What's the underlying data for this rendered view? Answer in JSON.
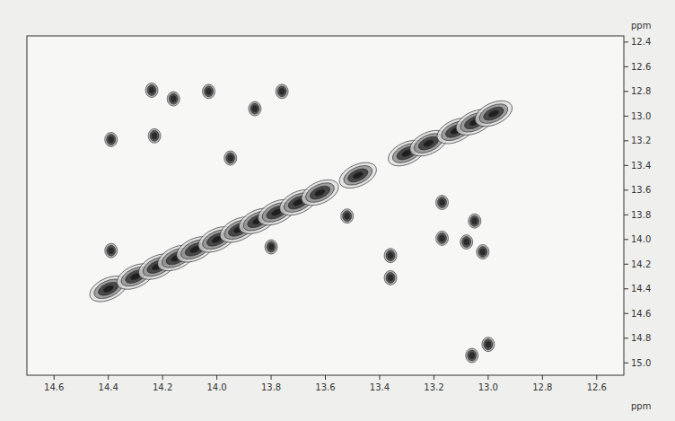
{
  "chart_data": {
    "type": "scatter",
    "x_label": "ppm",
    "y_label": "ppm",
    "xlim": [
      14.7,
      12.5
    ],
    "ylim": [
      12.35,
      15.1
    ],
    "xticks": [
      14.6,
      14.4,
      14.2,
      {
        "value": 14,
        "label": "14.0"
      },
      13.8,
      13.6,
      13.4,
      13.2,
      {
        "value": 13,
        "label": "13.0"
      },
      12.8,
      12.6
    ],
    "yticks": [
      12.4,
      12.6,
      12.8,
      {
        "value": 13,
        "label": "13.0"
      },
      13.2,
      13.4,
      13.6,
      13.8,
      {
        "value": 14,
        "label": "14.0"
      },
      14.2,
      14.4,
      14.6,
      14.8,
      {
        "value": 15,
        "label": "15.0"
      }
    ],
    "grid": false,
    "series": [
      {
        "color": "#2b2b2b",
        "marker": "diagonal",
        "x": [
          14.4,
          14.3,
          14.22,
          14.15,
          14.08,
          14.0,
          13.92,
          13.85,
          13.78,
          13.7,
          13.62,
          13.48,
          13.3,
          13.22,
          13.12,
          13.05,
          12.98
        ],
        "values": [
          14.4,
          14.3,
          14.22,
          14.15,
          14.08,
          14.0,
          13.92,
          13.85,
          13.78,
          13.7,
          13.62,
          13.48,
          13.3,
          13.22,
          13.12,
          13.05,
          12.98
        ]
      },
      {
        "color": "#2b2b2b",
        "marker": "contour",
        "x": [
          14.24,
          14.16,
          14.03,
          13.86,
          13.76,
          14.39,
          14.23,
          13.95,
          13.52,
          14.39,
          13.8,
          13.36,
          13.36,
          13.17,
          13.17,
          13.08,
          13.05,
          13.02,
          13.0,
          13.06
        ],
        "values": [
          12.79,
          12.86,
          12.8,
          12.94,
          12.8,
          13.19,
          13.16,
          13.34,
          13.81,
          14.09,
          14.06,
          14.13,
          14.31,
          13.7,
          13.99,
          14.02,
          13.85,
          14.1,
          14.85,
          14.94
        ]
      }
    ]
  }
}
